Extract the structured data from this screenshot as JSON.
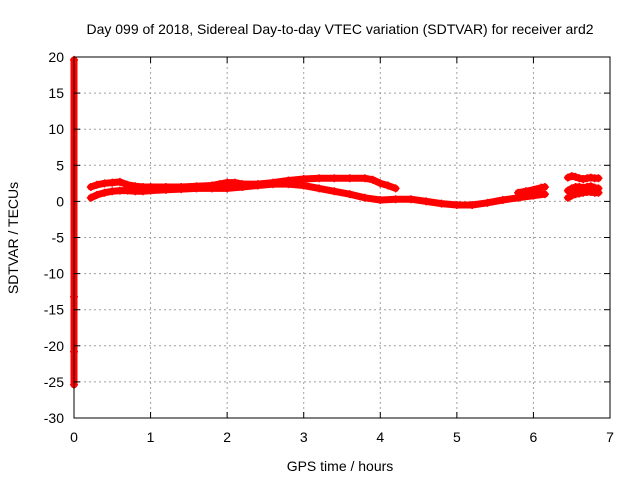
{
  "chart_data": {
    "type": "scatter",
    "title": "Day 099 of 2018, Sidereal Day-to-day VTEC variation (SDTVAR) for receiver ard2",
    "xlabel": "GPS time / hours",
    "ylabel": "SDTVAR / TECUs",
    "xlim": [
      0,
      7
    ],
    "ylim": [
      -30,
      20
    ],
    "xticks": [
      "0",
      "1",
      "2",
      "3",
      "4",
      "5",
      "6",
      "7"
    ],
    "yticks": [
      "20",
      "15",
      "10",
      "5",
      "0",
      "-5",
      "-10",
      "-15",
      "-20",
      "-25",
      "-30"
    ],
    "grid": true,
    "color": "#ff0000",
    "series": [
      {
        "x": [
          0.22,
          0.3,
          0.4,
          0.5,
          0.6,
          0.7,
          0.8,
          0.9,
          1.0,
          1.2,
          1.4,
          1.6,
          1.8,
          1.9,
          2.0,
          2.1,
          2.2,
          2.4,
          2.6,
          2.8,
          3.0,
          3.2,
          3.4,
          3.6,
          3.8,
          3.9,
          4.0,
          4.1,
          4.2
        ],
        "y": [
          2.0,
          2.3,
          2.5,
          2.6,
          2.7,
          2.3,
          2.1,
          2.0,
          2.0,
          2.0,
          2.0,
          2.1,
          2.2,
          2.4,
          2.6,
          2.6,
          2.4,
          2.4,
          2.6,
          2.9,
          3.1,
          3.2,
          3.2,
          3.2,
          3.2,
          3.0,
          2.5,
          2.2,
          1.8
        ]
      },
      {
        "x": [
          0.22,
          0.3,
          0.4,
          0.5,
          0.6,
          0.7,
          0.8,
          0.9,
          1.0,
          1.2,
          1.4,
          1.6,
          1.8,
          2.0,
          2.2,
          2.4,
          2.6,
          2.8,
          3.0,
          3.2,
          3.4,
          3.6,
          3.8,
          4.0,
          4.2,
          4.4,
          4.6,
          4.8,
          5.0,
          5.2,
          5.4,
          5.6,
          5.8,
          6.0,
          6.15
        ],
        "y": [
          0.5,
          0.9,
          1.2,
          1.4,
          1.5,
          1.5,
          1.4,
          1.4,
          1.5,
          1.6,
          1.7,
          1.8,
          1.8,
          1.8,
          2.0,
          2.2,
          2.4,
          2.4,
          2.2,
          1.8,
          1.4,
          1.0,
          0.5,
          0.2,
          0.3,
          0.3,
          0.0,
          -0.3,
          -0.5,
          -0.5,
          -0.2,
          0.2,
          0.5,
          0.8,
          1.0
        ]
      },
      {
        "x": [
          5.8,
          5.9,
          6.0,
          6.1,
          6.15
        ],
        "y": [
          1.2,
          1.4,
          1.6,
          1.9,
          2.0
        ]
      },
      {
        "x": [
          6.45,
          6.5,
          6.55,
          6.6,
          6.65,
          6.7,
          6.75,
          6.8,
          6.85
        ],
        "y": [
          3.3,
          3.5,
          3.4,
          3.2,
          3.1,
          3.2,
          3.3,
          3.2,
          3.2
        ]
      },
      {
        "x": [
          6.45,
          6.5,
          6.55,
          6.6,
          6.65,
          6.7,
          6.75,
          6.8,
          6.85
        ],
        "y": [
          0.5,
          0.8,
          1.0,
          1.1,
          1.2,
          1.3,
          1.3,
          1.2,
          1.2
        ]
      },
      {
        "x": [
          6.45,
          6.5,
          6.55,
          6.6,
          6.65,
          6.7,
          6.75,
          6.8,
          6.85
        ],
        "y": [
          1.5,
          1.8,
          2.0,
          2.0,
          1.9,
          2.0,
          2.1,
          1.9,
          1.8
        ]
      },
      {
        "x": [
          0.0,
          0.0,
          0.0,
          0.0
        ],
        "y": [
          19.6,
          -13.2,
          -20.8,
          -25.4
        ]
      }
    ]
  }
}
